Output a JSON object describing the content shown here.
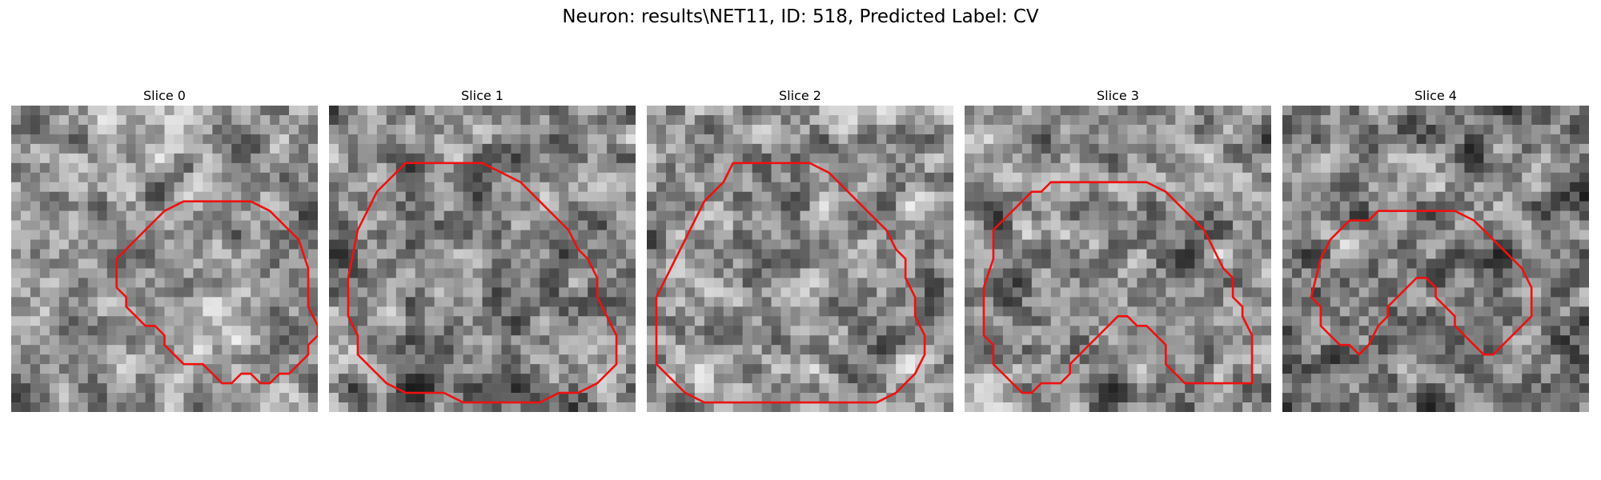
{
  "figure": {
    "title": "Neuron: results\\NET11, ID: 518, Predicted Label: CV"
  },
  "panels": [
    {
      "title": "Slice 0",
      "seed": 11,
      "mean": 0.58,
      "contrast": 0.22,
      "contour": [
        [
          18,
          10
        ],
        [
          25,
          10
        ],
        [
          27,
          11
        ],
        [
          30,
          14
        ],
        [
          31,
          17
        ],
        [
          31,
          21
        ],
        [
          32,
          23
        ],
        [
          32,
          24
        ],
        [
          31,
          25
        ],
        [
          31,
          26
        ],
        [
          30,
          27
        ],
        [
          29,
          28
        ],
        [
          28,
          28
        ],
        [
          27,
          29
        ],
        [
          26,
          29
        ],
        [
          25,
          28
        ],
        [
          24,
          28
        ],
        [
          23,
          29
        ],
        [
          22,
          29
        ],
        [
          21,
          28
        ],
        [
          20,
          27
        ],
        [
          18,
          27
        ],
        [
          17,
          26
        ],
        [
          16,
          25
        ],
        [
          16,
          24
        ],
        [
          15,
          23
        ],
        [
          14,
          23
        ],
        [
          13,
          22
        ],
        [
          12,
          21
        ],
        [
          12,
          20
        ],
        [
          11,
          19
        ],
        [
          11,
          16
        ],
        [
          12,
          15
        ],
        [
          14,
          13
        ],
        [
          15,
          12
        ],
        [
          16,
          11
        ]
      ]
    },
    {
      "title": "Slice 1",
      "seed": 23,
      "mean": 0.52,
      "contrast": 0.26,
      "contour": [
        [
          9,
          6
        ],
        [
          16,
          6
        ],
        [
          18,
          7
        ],
        [
          20,
          8
        ],
        [
          21,
          9
        ],
        [
          22,
          10
        ],
        [
          23,
          11
        ],
        [
          24,
          12
        ],
        [
          25,
          13
        ],
        [
          26,
          15
        ],
        [
          27,
          16
        ],
        [
          28,
          18
        ],
        [
          28,
          20
        ],
        [
          29,
          22
        ],
        [
          30,
          24
        ],
        [
          30,
          27
        ],
        [
          29,
          28
        ],
        [
          28,
          29
        ],
        [
          26,
          30
        ],
        [
          24,
          30
        ],
        [
          22,
          31
        ],
        [
          20,
          31
        ],
        [
          14,
          31
        ],
        [
          12,
          30
        ],
        [
          8,
          30
        ],
        [
          6,
          29
        ],
        [
          5,
          28
        ],
        [
          4,
          27
        ],
        [
          3,
          26
        ],
        [
          3,
          24
        ],
        [
          2,
          22
        ],
        [
          2,
          18
        ],
        [
          3,
          13
        ],
        [
          4,
          11
        ],
        [
          5,
          9
        ],
        [
          6,
          8
        ],
        [
          7,
          7
        ],
        [
          8,
          6
        ]
      ]
    },
    {
      "title": "Slice 2",
      "seed": 37,
      "mean": 0.56,
      "contrast": 0.25,
      "contour": [
        [
          9,
          6
        ],
        [
          17,
          6
        ],
        [
          19,
          7
        ],
        [
          20,
          8
        ],
        [
          22,
          10
        ],
        [
          23,
          11
        ],
        [
          24,
          12
        ],
        [
          25,
          13
        ],
        [
          26,
          15
        ],
        [
          27,
          16
        ],
        [
          27,
          18
        ],
        [
          28,
          20
        ],
        [
          28,
          22
        ],
        [
          29,
          24
        ],
        [
          29,
          26
        ],
        [
          28,
          28
        ],
        [
          27,
          29
        ],
        [
          26,
          30
        ],
        [
          24,
          31
        ],
        [
          6,
          31
        ],
        [
          4,
          30
        ],
        [
          3,
          29
        ],
        [
          2,
          28
        ],
        [
          1,
          27
        ],
        [
          1,
          24
        ],
        [
          1,
          20
        ],
        [
          2,
          18
        ],
        [
          3,
          16
        ],
        [
          4,
          14
        ],
        [
          5,
          12
        ],
        [
          6,
          10
        ],
        [
          7,
          9
        ],
        [
          8,
          8
        ]
      ]
    },
    {
      "title": "Slice 3",
      "seed": 53,
      "mean": 0.54,
      "contrast": 0.24,
      "contour": [
        [
          9,
          8
        ],
        [
          19,
          8
        ],
        [
          21,
          9
        ],
        [
          23,
          11
        ],
        [
          25,
          13
        ],
        [
          26,
          15
        ],
        [
          27,
          17
        ],
        [
          28,
          18
        ],
        [
          28,
          20
        ],
        [
          29,
          21
        ],
        [
          29,
          22
        ],
        [
          30,
          24
        ],
        [
          30,
          29
        ],
        [
          23,
          29
        ],
        [
          22,
          28
        ],
        [
          21,
          27
        ],
        [
          21,
          25
        ],
        [
          20,
          24
        ],
        [
          19,
          23
        ],
        [
          18,
          23
        ],
        [
          17,
          22
        ],
        [
          16,
          22
        ],
        [
          15,
          23
        ],
        [
          14,
          24
        ],
        [
          13,
          25
        ],
        [
          12,
          26
        ],
        [
          11,
          27
        ],
        [
          11,
          28
        ],
        [
          10,
          29
        ],
        [
          8,
          29
        ],
        [
          7,
          30
        ],
        [
          6,
          30
        ],
        [
          5,
          29
        ],
        [
          4,
          28
        ],
        [
          3,
          27
        ],
        [
          3,
          25
        ],
        [
          2,
          24
        ],
        [
          2,
          19
        ],
        [
          3,
          16
        ],
        [
          3,
          13
        ],
        [
          4,
          12
        ],
        [
          5,
          11
        ],
        [
          6,
          10
        ],
        [
          7,
          9
        ],
        [
          8,
          9
        ]
      ]
    },
    {
      "title": "Slice 4",
      "seed": 71,
      "mean": 0.5,
      "contrast": 0.26,
      "contour": [
        [
          12,
          11
        ],
        [
          18,
          11
        ],
        [
          20,
          12
        ],
        [
          21,
          13
        ],
        [
          22,
          14
        ],
        [
          23,
          15
        ],
        [
          24,
          16
        ],
        [
          25,
          17
        ],
        [
          26,
          19
        ],
        [
          26,
          22
        ],
        [
          25,
          23
        ],
        [
          24,
          24
        ],
        [
          23,
          25
        ],
        [
          22,
          26
        ],
        [
          21,
          26
        ],
        [
          20,
          25
        ],
        [
          19,
          24
        ],
        [
          18,
          23
        ],
        [
          18,
          22
        ],
        [
          17,
          21
        ],
        [
          16,
          20
        ],
        [
          16,
          19
        ],
        [
          15,
          18
        ],
        [
          14,
          18
        ],
        [
          13,
          19
        ],
        [
          12,
          20
        ],
        [
          11,
          21
        ],
        [
          11,
          22
        ],
        [
          10,
          23
        ],
        [
          9,
          25
        ],
        [
          8,
          26
        ],
        [
          7,
          25
        ],
        [
          6,
          25
        ],
        [
          5,
          24
        ],
        [
          4,
          23
        ],
        [
          4,
          21
        ],
        [
          3,
          20
        ],
        [
          4,
          16
        ],
        [
          5,
          14
        ],
        [
          6,
          13
        ],
        [
          7,
          12
        ],
        [
          9,
          12
        ],
        [
          10,
          11
        ]
      ]
    }
  ]
}
